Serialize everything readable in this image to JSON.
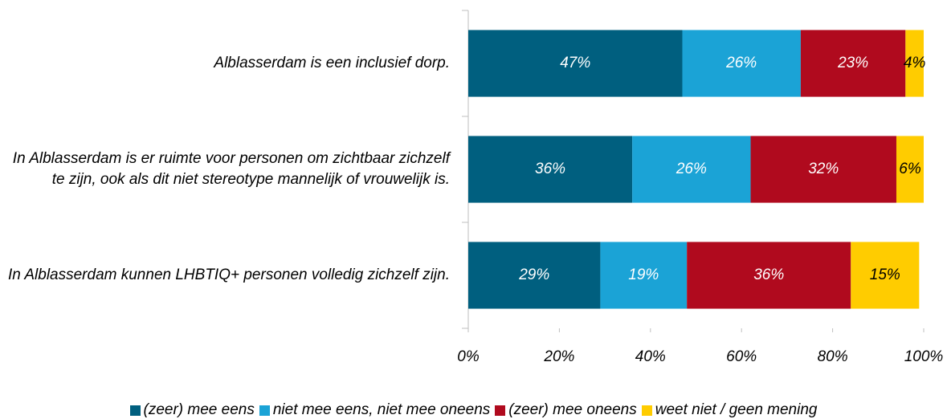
{
  "chart_data": {
    "type": "stacked-barh",
    "categories": [
      "Alblasserdam is een inclusief dorp.",
      "In Alblasserdam is er ruimte voor personen om zichtbaar zichzelf te zijn, ook als dit niet stereotype mannelijk of vrouwelijk is.",
      "In Alblasserdam kunnen LHBTIQ+ personen volledig zichzelf zijn."
    ],
    "series": [
      {
        "name": "(zeer) mee eens",
        "color": "#005f7f",
        "values": [
          47,
          36,
          29
        ],
        "value_labels": [
          "47%",
          "36%",
          "29%"
        ]
      },
      {
        "name": "niet mee eens, niet mee oneens",
        "color": "#1ba3d6",
        "values": [
          26,
          26,
          19
        ],
        "value_labels": [
          "26%",
          "26%",
          "19%"
        ]
      },
      {
        "name": "(zeer) mee oneens",
        "color": "#b00a1e",
        "values": [
          23,
          32,
          36
        ],
        "value_labels": [
          "23%",
          "32%",
          "36%"
        ]
      },
      {
        "name": "weet niet / geen mening",
        "color": "#ffcc00",
        "values": [
          4,
          6,
          15
        ],
        "value_labels": [
          "4%",
          "6%",
          "15%"
        ]
      }
    ],
    "xlim": [
      0,
      100
    ],
    "xticks": [
      {
        "value": 0,
        "label": "0%"
      },
      {
        "value": 20,
        "label": "20%"
      },
      {
        "value": 40,
        "label": "40%"
      },
      {
        "value": 60,
        "label": "60%"
      },
      {
        "value": 80,
        "label": "80%"
      },
      {
        "value": 100,
        "label": "100%"
      }
    ],
    "legend": "bottom"
  }
}
